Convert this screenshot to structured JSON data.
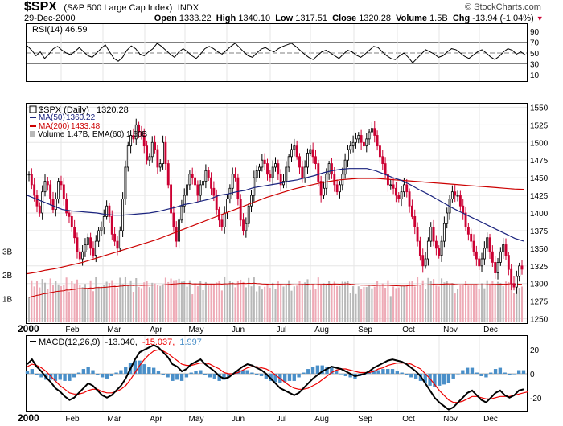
{
  "header": {
    "symbol": "$SPX",
    "name": "(S&P 500 Large Cap Index)",
    "exchange": "INDX",
    "date": "29-Dec-2000",
    "open_label": "Open",
    "open": "1333.22",
    "high_label": "High",
    "high": "1340.10",
    "low_label": "Low",
    "low": "1317.51",
    "close_label": "Close",
    "close": "1320.28",
    "volume_label": "Volume",
    "volume": "1.5B",
    "chg_label": "Chg",
    "chg": "-13.94 (-1.04%)",
    "chg_arrow": "▼",
    "watermark": "© StockCharts.com"
  },
  "colors": {
    "price_up": "#000000",
    "price_down": "#cc0033",
    "ma50": "#1a237e",
    "ma200": "#cc0000",
    "macd": "#000000",
    "signal": "#ee0000",
    "hist": "#4a8fc8",
    "vol_up": "#b8b8b8",
    "vol_down": "#eeaab6"
  },
  "chart_data": [
    {
      "type": "line",
      "title": "RSI(14) 46.59",
      "series_name": "RSI(14)",
      "last_value": 46.59,
      "ylim": [
        0,
        100
      ],
      "y_ticks": [
        90,
        70,
        50,
        30,
        10
      ],
      "reference_lines": [
        70,
        50,
        30
      ],
      "values": [
        63,
        55,
        45,
        52,
        40,
        48,
        58,
        62,
        55,
        50,
        47,
        53,
        60,
        52,
        45,
        42,
        50,
        58,
        65,
        52,
        40,
        35,
        42,
        55,
        63,
        58,
        48,
        45,
        52,
        58,
        68,
        62,
        55,
        48,
        42,
        52,
        58,
        52,
        45,
        40,
        48,
        58,
        62,
        58,
        52,
        48,
        55,
        62,
        68,
        60,
        52,
        45,
        42,
        50,
        57,
        60,
        55,
        52,
        58,
        62,
        65,
        68,
        62,
        55,
        48,
        42,
        38,
        45,
        52,
        55,
        50,
        45,
        40,
        48,
        55,
        52,
        46,
        42,
        48,
        55,
        62,
        60,
        52,
        45,
        40,
        38,
        45,
        50,
        42,
        32,
        40,
        48,
        56,
        52,
        48,
        42,
        45,
        52,
        58,
        56,
        50,
        44,
        40,
        46,
        52,
        56,
        50,
        43,
        38,
        44,
        52,
        58,
        55,
        48,
        52,
        46.59
      ]
    },
    {
      "type": "candlestick",
      "title": "$SPX (Daily) 1320.28",
      "legend": [
        {
          "label": "$SPX (Daily)",
          "value": "1320.28"
        },
        {
          "label": "MA(50)",
          "value": "1360.22"
        },
        {
          "label": "MA(200)",
          "value": "1433.48"
        },
        {
          "label": "Volume 1.47B, EMA(60) 1.60B"
        }
      ],
      "ylim": [
        1245,
        1555
      ],
      "y_ticks": [
        1550,
        1525,
        1500,
        1475,
        1450,
        1425,
        1400,
        1375,
        1350,
        1325,
        1300,
        1275,
        1250
      ],
      "volume_ylim_billions": [
        0,
        4
      ],
      "volume_ticks": [
        "3B",
        "2B",
        "1B"
      ],
      "x_labels": [
        "2000",
        "Feb",
        "Mar",
        "Apr",
        "May",
        "Jun",
        "Jul",
        "Aug",
        "Sep",
        "Oct",
        "Nov",
        "Dec"
      ],
      "close": [
        1455,
        1440,
        1425,
        1410,
        1400,
        1430,
        1445,
        1440,
        1420,
        1405,
        1420,
        1445,
        1440,
        1420,
        1400,
        1395,
        1380,
        1365,
        1345,
        1335,
        1345,
        1355,
        1365,
        1350,
        1340,
        1360,
        1375,
        1380,
        1395,
        1410,
        1395,
        1370,
        1360,
        1350,
        1375,
        1420,
        1465,
        1495,
        1510,
        1505,
        1525,
        1515,
        1510,
        1495,
        1475,
        1480,
        1500,
        1490,
        1465,
        1470,
        1500,
        1470,
        1440,
        1400,
        1380,
        1360,
        1390,
        1410,
        1425,
        1440,
        1455,
        1450,
        1440,
        1425,
        1440,
        1445,
        1460,
        1450,
        1435,
        1425,
        1405,
        1390,
        1380,
        1400,
        1420,
        1435,
        1455,
        1450,
        1420,
        1390,
        1375,
        1385,
        1410,
        1425,
        1450,
        1460,
        1465,
        1475,
        1470,
        1455,
        1450,
        1465,
        1470,
        1455,
        1440,
        1445,
        1465,
        1480,
        1490,
        1495,
        1480,
        1465,
        1450,
        1465,
        1485,
        1490,
        1480,
        1470,
        1445,
        1425,
        1435,
        1455,
        1470,
        1455,
        1440,
        1430,
        1440,
        1455,
        1475,
        1490,
        1495,
        1500,
        1505,
        1510,
        1500,
        1495,
        1505,
        1515,
        1520,
        1510,
        1495,
        1480,
        1470,
        1455,
        1440,
        1440,
        1435,
        1425,
        1420,
        1430,
        1440,
        1430,
        1410,
        1395,
        1380,
        1360,
        1340,
        1325,
        1335,
        1360,
        1380,
        1360,
        1350,
        1340,
        1360,
        1385,
        1400,
        1420,
        1430,
        1425,
        1425,
        1410,
        1400,
        1380,
        1370,
        1360,
        1345,
        1335,
        1325,
        1335,
        1350,
        1365,
        1345,
        1330,
        1315,
        1330,
        1345,
        1355,
        1340,
        1320,
        1300,
        1295,
        1310,
        1325,
        1320.28
      ],
      "ma50": [
        1425,
        1420,
        1415,
        1410,
        1405,
        1403,
        1402,
        1401,
        1400,
        1398,
        1397,
        1397,
        1398,
        1399,
        1400,
        1402,
        1405,
        1408,
        1412,
        1414,
        1417,
        1420,
        1425,
        1427,
        1430,
        1432,
        1436,
        1438,
        1440,
        1442,
        1445,
        1447,
        1450,
        1453,
        1457,
        1460,
        1462,
        1463,
        1463,
        1463,
        1460,
        1455,
        1450,
        1446,
        1440,
        1433,
        1427,
        1420,
        1413,
        1406,
        1400,
        1394,
        1388,
        1382,
        1376,
        1370,
        1364,
        1360.22
      ],
      "ma200": [
        1314,
        1316,
        1319,
        1321,
        1324,
        1327,
        1330,
        1334,
        1338,
        1342,
        1346,
        1350,
        1354,
        1358,
        1362,
        1367,
        1372,
        1377,
        1382,
        1387,
        1392,
        1397,
        1402,
        1407,
        1412,
        1417,
        1422,
        1426,
        1430,
        1434,
        1437,
        1440,
        1443,
        1445,
        1447,
        1448,
        1449,
        1449,
        1449,
        1448,
        1447,
        1446,
        1445,
        1444,
        1443,
        1442,
        1441,
        1440,
        1439,
        1438,
        1437,
        1436,
        1435,
        1434,
        1433.48
      ]
    },
    {
      "type": "line",
      "title": "MACD(12,26,9) -13.040, -15.037, 1.997",
      "series": [
        {
          "name": "MACD",
          "last": -13.04
        },
        {
          "name": "Signal",
          "last": -15.037
        },
        {
          "name": "Histogram",
          "last": 1.997
        }
      ],
      "ylim": [
        -30,
        30
      ],
      "y_ticks": [
        20,
        0,
        -20
      ],
      "values_label_parts": [
        "MACD(12,26,9)",
        "-13.040,",
        "-15.037,",
        "1.997"
      ],
      "macd": [
        8,
        12,
        6,
        2,
        -3,
        -7,
        -12,
        -15,
        -19,
        -22,
        -20,
        -16,
        -12,
        -8,
        -10,
        -14,
        -18,
        -20,
        -18,
        -14,
        -10,
        -4,
        4,
        12,
        18,
        20,
        22,
        24,
        22,
        18,
        14,
        8,
        6,
        2,
        4,
        8,
        10,
        12,
        8,
        5,
        2,
        -2,
        -4,
        -3,
        0,
        3,
        6,
        8,
        7,
        5,
        3,
        0,
        -4,
        -8,
        -12,
        -14,
        -16,
        -18,
        -16,
        -12,
        -8,
        -4,
        -1,
        2,
        4,
        6,
        5,
        4,
        2,
        0,
        -2,
        -1,
        0,
        2,
        5,
        7,
        9,
        11,
        12,
        11,
        10,
        8,
        5,
        2,
        -2,
        -8,
        -14,
        -20,
        -24,
        -27,
        -30,
        -28,
        -24,
        -20,
        -16,
        -14,
        -18,
        -22,
        -24,
        -20,
        -16,
        -14,
        -18,
        -20,
        -18,
        -14,
        -13.04
      ],
      "signal": [
        6,
        8,
        7,
        5,
        2,
        -2,
        -6,
        -10,
        -13,
        -16,
        -17,
        -17,
        -16,
        -14,
        -13,
        -13,
        -15,
        -16,
        -16,
        -15,
        -13,
        -10,
        -5,
        1,
        7,
        12,
        16,
        19,
        20,
        19,
        17,
        14,
        11,
        8,
        7,
        7,
        8,
        9,
        9,
        8,
        6,
        4,
        1,
        0,
        0,
        1,
        3,
        5,
        6,
        6,
        5,
        4,
        2,
        -1,
        -4,
        -7,
        -10,
        -12,
        -13,
        -13,
        -12,
        -10,
        -8,
        -5,
        -2,
        1,
        3,
        4,
        4,
        3,
        2,
        1,
        1,
        1,
        2,
        4,
        5,
        7,
        8,
        9,
        9,
        9,
        8,
        6,
        4,
        0,
        -4,
        -9,
        -14,
        -18,
        -22,
        -24,
        -24,
        -23,
        -21,
        -19,
        -19,
        -20,
        -21,
        -21,
        -20,
        -19,
        -19,
        -19,
        -18,
        -17,
        -16,
        -15.037
      ]
    }
  ]
}
